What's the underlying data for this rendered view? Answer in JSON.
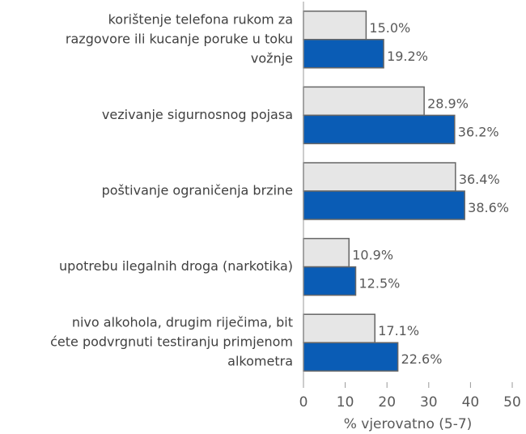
{
  "chart_data": {
    "type": "barh",
    "categories": [
      [
        "korištenje telefona rukom za",
        "razgovore ili kucanje poruke u toku",
        "vožnje"
      ],
      [
        "vezivanje sigurnosnog pojasa"
      ],
      [
        "poštivanje ograničenja brzine"
      ],
      [
        "upotrebu ilegalnih droga (narkotika)"
      ],
      [
        "nivo alkohola, drugim riječima, bit",
        "ćete podvrgnuti testiranju primjenom",
        "alkometra"
      ]
    ],
    "series": [
      {
        "color": "#e6e6e6",
        "values": [
          15.0,
          28.9,
          36.4,
          10.9,
          17.1
        ],
        "value_labels": [
          "15.0%",
          "28.9%",
          "36.4%",
          "10.9%",
          "17.1%"
        ]
      },
      {
        "color": "#0a5cb5",
        "values": [
          19.2,
          36.2,
          38.6,
          12.5,
          22.6
        ],
        "value_labels": [
          "19.2%",
          "36.2%",
          "38.6%",
          "12.5%",
          "22.6%"
        ]
      }
    ],
    "xlabel": "% vjerovatno (5-7)",
    "xlim": [
      0,
      50
    ],
    "xticks": [
      0,
      10,
      20,
      30,
      40,
      50
    ]
  }
}
